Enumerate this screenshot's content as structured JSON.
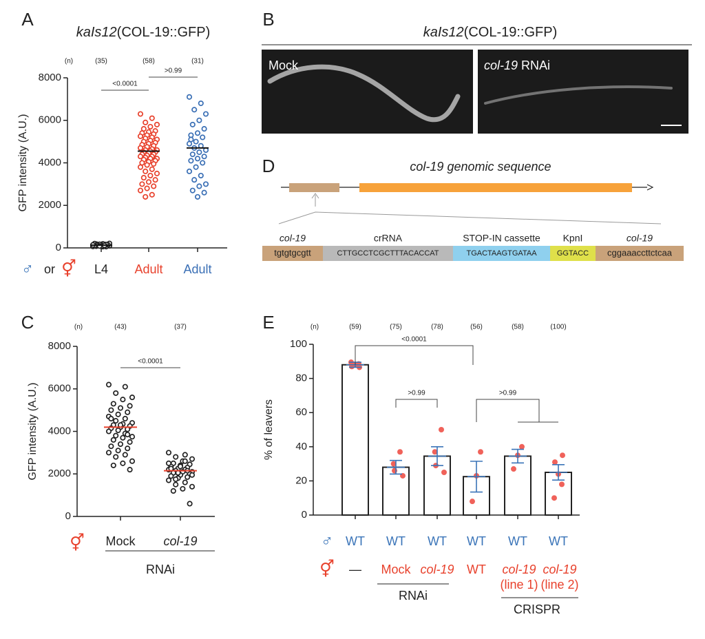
{
  "panel_labels": [
    "A",
    "B",
    "C",
    "D",
    "E"
  ],
  "chart_data": [
    {
      "type": "dotplot",
      "title_italic": "kaIs12",
      "title": "(COL-19::GFP)",
      "y_label": "GFP intensity (A.U.)",
      "ylim": [
        0,
        8000
      ],
      "yticks": [
        0,
        2000,
        4000,
        6000,
        8000
      ],
      "n_label": "(n)",
      "n": [
        "(35)",
        "(58)",
        "(31)"
      ],
      "comparisons": [
        "<0.0001",
        ">0.99"
      ],
      "symbols": [
        "♂",
        "or",
        "⚥"
      ],
      "series": [
        {
          "name": "L4",
          "color": "#222222",
          "mean": 130,
          "values": [
            80,
            120,
            150,
            100,
            60,
            180,
            130,
            90,
            200,
            110,
            140,
            70,
            160,
            120,
            100,
            190,
            80,
            130,
            150,
            110,
            60,
            170,
            140,
            90,
            120,
            210,
            100,
            130,
            150,
            80,
            110,
            160,
            90,
            140,
            120
          ]
        },
        {
          "name": "Adult",
          "color": "#e8412c",
          "mean": 4550,
          "values": [
            6300,
            6100,
            5900,
            5800,
            5700,
            5600,
            5500,
            5450,
            5400,
            5350,
            5300,
            5250,
            5200,
            5150,
            5100,
            5050,
            5000,
            4950,
            4900,
            4850,
            4800,
            4750,
            4700,
            4650,
            4600,
            4600,
            4550,
            4500,
            4500,
            4450,
            4400,
            4400,
            4350,
            4300,
            4300,
            4250,
            4200,
            4200,
            4150,
            4100,
            4050,
            4000,
            3950,
            3900,
            3800,
            3700,
            3600,
            3500,
            3400,
            3300,
            3200,
            3100,
            3000,
            2900,
            2800,
            2700,
            2500,
            2400
          ]
        },
        {
          "name": "Adult",
          "color": "#3a6fb5",
          "mean": 4700,
          "values": [
            7100,
            6800,
            6500,
            6300,
            6000,
            5800,
            5600,
            5400,
            5300,
            5200,
            5000,
            4900,
            4800,
            4700,
            4600,
            4500,
            4400,
            4300,
            4200,
            4100,
            4000,
            3800,
            3600,
            3400,
            3200,
            3000,
            2900,
            2700,
            2600,
            2400,
            5100
          ]
        }
      ]
    },
    {
      "type": "dotplot",
      "y_label": "GFP intensity (A.U.)",
      "ylim": [
        0,
        8000
      ],
      "yticks": [
        0,
        2000,
        4000,
        6000,
        8000
      ],
      "n_label": "(n)",
      "n": [
        "(43)",
        "(37)"
      ],
      "comparisons": [
        "<0.0001"
      ],
      "symbols": [
        "⚥"
      ],
      "group_label": "RNAi",
      "mean_color": "#e8412c",
      "series": [
        {
          "name": "Mock",
          "color": "#222222",
          "mean": 4200,
          "values": [
            6200,
            6100,
            5800,
            5600,
            5500,
            5300,
            5200,
            5100,
            5000,
            4900,
            4800,
            4700,
            4600,
            4500,
            4400,
            4350,
            4300,
            4250,
            4200,
            4150,
            4100,
            4050,
            4000,
            3900,
            3800,
            3750,
            3700,
            3600,
            3500,
            3400,
            3300,
            3200,
            3100,
            3000,
            2900,
            2800,
            2600,
            2500,
            2400,
            2200,
            4300,
            4600,
            3850
          ]
        },
        {
          "name": "col-19",
          "color": "#222222",
          "mean": 2150,
          "values": [
            3000,
            2900,
            2800,
            2700,
            2600,
            2500,
            2450,
            2400,
            2350,
            2300,
            2250,
            2200,
            2200,
            2150,
            2100,
            2100,
            2050,
            2000,
            1950,
            1900,
            1850,
            1800,
            1700,
            1600,
            1500,
            1400,
            1300,
            1200,
            600,
            2350,
            2250,
            2150,
            2050,
            2500,
            2600,
            1750,
            1950
          ]
        }
      ]
    },
    {
      "type": "bar",
      "y_label": "% of leavers",
      "ylim": [
        0,
        100
      ],
      "yticks": [
        0,
        20,
        40,
        60,
        80,
        100
      ],
      "n_label": "(n)",
      "n": [
        "(59)",
        "(75)",
        "(78)",
        "(56)",
        "(58)",
        "(100)"
      ],
      "comparisons": [
        "<0.0001",
        ">0.99",
        ">0.99"
      ],
      "symbols": [
        "♂",
        "⚥"
      ],
      "male": [
        "WT",
        "WT",
        "WT",
        "WT",
        "WT",
        "WT"
      ],
      "hermaphrodite": [
        [
          "—"
        ],
        [
          "Mock"
        ],
        [
          "col-19"
        ],
        [
          "WT"
        ],
        [
          "col-19",
          "(line 1)"
        ],
        [
          "col-19",
          "(line 2)"
        ]
      ],
      "groups": [
        "RNAi",
        "CRISPR"
      ],
      "color": "#222222",
      "point_color": "#f0625a",
      "error_color": "#3a74b8",
      "values": [
        88,
        28,
        34.5,
        22.5,
        34.5,
        25
      ],
      "errors": [
        1.5,
        4,
        5.5,
        9,
        4,
        4.5
      ],
      "points": [
        [
          86.5,
          87,
          88,
          88.5,
          89.5
        ],
        [
          37,
          30,
          26,
          23
        ],
        [
          50,
          37,
          29,
          25
        ],
        [
          37,
          23,
          8
        ],
        [
          40,
          35,
          27
        ],
        [
          35,
          31,
          24,
          18,
          10
        ]
      ]
    }
  ],
  "panel_b": {
    "title_italic": "kaIs12",
    "title": "(COL-19::GFP)",
    "images": [
      {
        "label": "Mock"
      },
      {
        "label_italic": "col-19",
        "label": "RNAi"
      }
    ]
  },
  "panel_d": {
    "title": "col-19 genomic sequence",
    "segments": [
      {
        "above": "col-19",
        "sequence": "tgtgtgcgtt",
        "color": "#c9a27a"
      },
      {
        "above": "crRNA",
        "sequence": "CTTGCCTCGCTTTACACCAT",
        "color": "#b9b9b9"
      },
      {
        "above": "STOP-IN cassette",
        "sequence": "TGACTAAGTGATAA",
        "color": "#8fd0ee"
      },
      {
        "above": "KpnI",
        "sequence": "GGTACC",
        "color": "#dfe04a"
      },
      {
        "above": "col-19",
        "sequence": "cggaaaccttctcaa",
        "color": "#c9a27a"
      }
    ]
  }
}
